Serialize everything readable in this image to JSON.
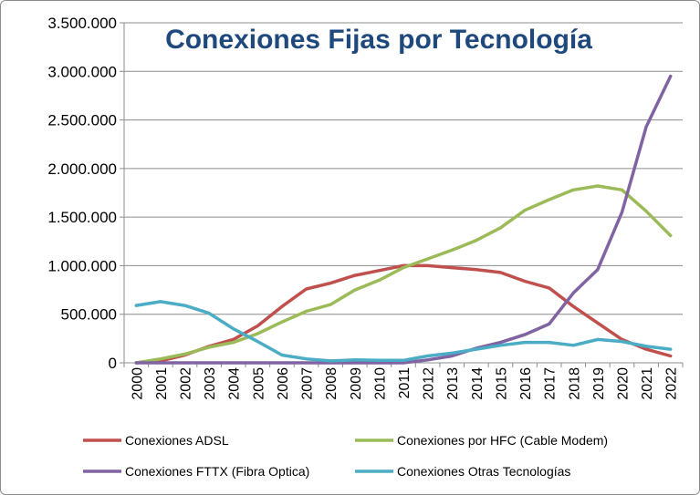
{
  "chart_data": {
    "type": "line",
    "title": "Conexiones Fijas por Tecnología",
    "xlabel": "",
    "ylabel": "",
    "ylim": [
      0,
      3500000
    ],
    "yticks": [
      0,
      500000,
      1000000,
      1500000,
      2000000,
      2500000,
      3000000,
      3500000
    ],
    "ytick_labels": [
      "0",
      "500.000",
      "1.000.000",
      "1.500.000",
      "2.000.000",
      "2.500.000",
      "3.000.000",
      "3.500.000"
    ],
    "grid": "horizontal",
    "legend_position": "bottom",
    "categories": [
      "2000",
      "2001",
      "2002",
      "2003",
      "2004",
      "2005",
      "2006",
      "2007",
      "2008",
      "2009",
      "2010",
      "2011",
      "2012",
      "2013",
      "2014",
      "2015",
      "2016",
      "2017",
      "2018",
      "2019",
      "2020",
      "2021",
      "2022"
    ],
    "series": [
      {
        "name": "Conexiones ADSL",
        "color": "#c0504d",
        "values": [
          0,
          20000,
          80000,
          170000,
          240000,
          380000,
          580000,
          760000,
          820000,
          900000,
          950000,
          1000000,
          1000000,
          980000,
          960000,
          930000,
          840000,
          770000,
          580000,
          410000,
          240000,
          140000,
          70000
        ]
      },
      {
        "name": "Conexiones por HFC (Cable Modem)",
        "color": "#9bbb59",
        "values": [
          0,
          40000,
          90000,
          160000,
          210000,
          300000,
          420000,
          530000,
          600000,
          750000,
          850000,
          980000,
          1070000,
          1160000,
          1260000,
          1390000,
          1570000,
          1680000,
          1780000,
          1820000,
          1780000,
          1560000,
          1310000
        ]
      },
      {
        "name": "Conexiones FTTX (Fibra Optica)",
        "color": "#8064a2",
        "values": [
          0,
          0,
          0,
          0,
          0,
          0,
          0,
          0,
          0,
          0,
          0,
          0,
          30000,
          70000,
          150000,
          210000,
          290000,
          400000,
          720000,
          960000,
          1550000,
          2430000,
          2950000
        ]
      },
      {
        "name": "Conexiones Otras Tecnologías",
        "color": "#4bacc6",
        "values": [
          590000,
          630000,
          590000,
          510000,
          350000,
          220000,
          80000,
          40000,
          20000,
          30000,
          25000,
          25000,
          70000,
          100000,
          140000,
          180000,
          210000,
          210000,
          180000,
          240000,
          220000,
          170000,
          140000
        ]
      }
    ]
  }
}
